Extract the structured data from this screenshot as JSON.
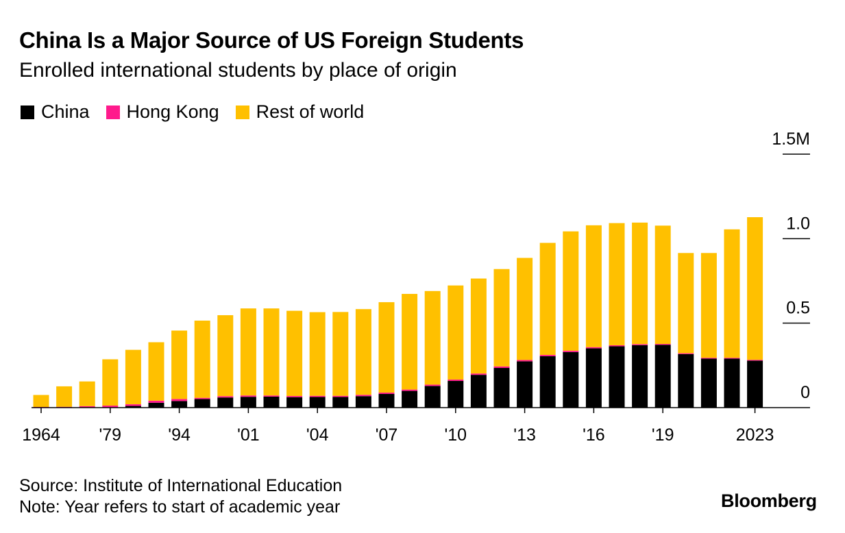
{
  "header": {
    "title": "China Is a Major Source of US Foreign Students",
    "subtitle": "Enrolled international students by place of origin"
  },
  "colors": {
    "china": "#000000",
    "hong_kong": "#ff1a8c",
    "rest_of_world": "#ffc000",
    "axis": "#000000"
  },
  "footer": {
    "source": "Source: Institute of International Education",
    "note": "Note: Year refers to start of academic year",
    "brand": "Bloomberg"
  },
  "chart_data": {
    "type": "bar",
    "stacked": true,
    "title": "China Is a Major Source of US Foreign Students",
    "subtitle": "Enrolled international students by place of origin",
    "xlabel": "",
    "ylabel": "",
    "ylim": [
      0,
      1.5
    ],
    "y_unit": "millions of students",
    "y_ticks": [
      0,
      0.5,
      1.0,
      1.5
    ],
    "y_tick_labels": [
      "0",
      "0.5",
      "1.0",
      "1.5M"
    ],
    "legend_position": "top-left",
    "grid": false,
    "categories": [
      "1964",
      "1969",
      "1974",
      "1979",
      "1984",
      "1989",
      "1994",
      "1999",
      "2000",
      "2001",
      "2002",
      "2003",
      "2004",
      "2005",
      "2006",
      "2007",
      "2008",
      "2009",
      "2010",
      "2011",
      "2012",
      "2013",
      "2014",
      "2015",
      "2016",
      "2017",
      "2018",
      "2019",
      "2020",
      "2021",
      "2022",
      "2023"
    ],
    "x_tick_labels": [
      {
        "index": 0,
        "label": "1964"
      },
      {
        "index": 3,
        "label": "'79"
      },
      {
        "index": 6,
        "label": "'94"
      },
      {
        "index": 9,
        "label": "'01"
      },
      {
        "index": 12,
        "label": "'04"
      },
      {
        "index": 15,
        "label": "'07"
      },
      {
        "index": 18,
        "label": "'10"
      },
      {
        "index": 21,
        "label": "'13"
      },
      {
        "index": 24,
        "label": "'16"
      },
      {
        "index": 27,
        "label": "'19"
      },
      {
        "index": 31,
        "label": "2023"
      }
    ],
    "series": [
      {
        "name": "China",
        "color": "#000000",
        "values": [
          0.0,
          0.0,
          0.0,
          0.002,
          0.01,
          0.029,
          0.039,
          0.051,
          0.06,
          0.064,
          0.065,
          0.062,
          0.063,
          0.063,
          0.068,
          0.081,
          0.099,
          0.128,
          0.158,
          0.194,
          0.235,
          0.274,
          0.304,
          0.329,
          0.351,
          0.363,
          0.37,
          0.372,
          0.317,
          0.29,
          0.29,
          0.278
        ]
      },
      {
        "name": "Hong Kong",
        "color": "#ff1a8c",
        "values": [
          0.004,
          0.005,
          0.009,
          0.01,
          0.01,
          0.012,
          0.012,
          0.007,
          0.008,
          0.008,
          0.007,
          0.007,
          0.007,
          0.007,
          0.008,
          0.008,
          0.008,
          0.008,
          0.008,
          0.008,
          0.009,
          0.008,
          0.008,
          0.008,
          0.007,
          0.006,
          0.006,
          0.005,
          0.005,
          0.005,
          0.005,
          0.005
        ]
      },
      {
        "name": "Rest of world",
        "color": "#ffc000",
        "values": [
          0.071,
          0.121,
          0.146,
          0.274,
          0.322,
          0.346,
          0.405,
          0.457,
          0.479,
          0.515,
          0.515,
          0.504,
          0.495,
          0.496,
          0.507,
          0.535,
          0.566,
          0.554,
          0.557,
          0.562,
          0.576,
          0.604,
          0.663,
          0.706,
          0.721,
          0.723,
          0.719,
          0.7,
          0.593,
          0.62,
          0.76,
          0.844
        ]
      }
    ]
  }
}
